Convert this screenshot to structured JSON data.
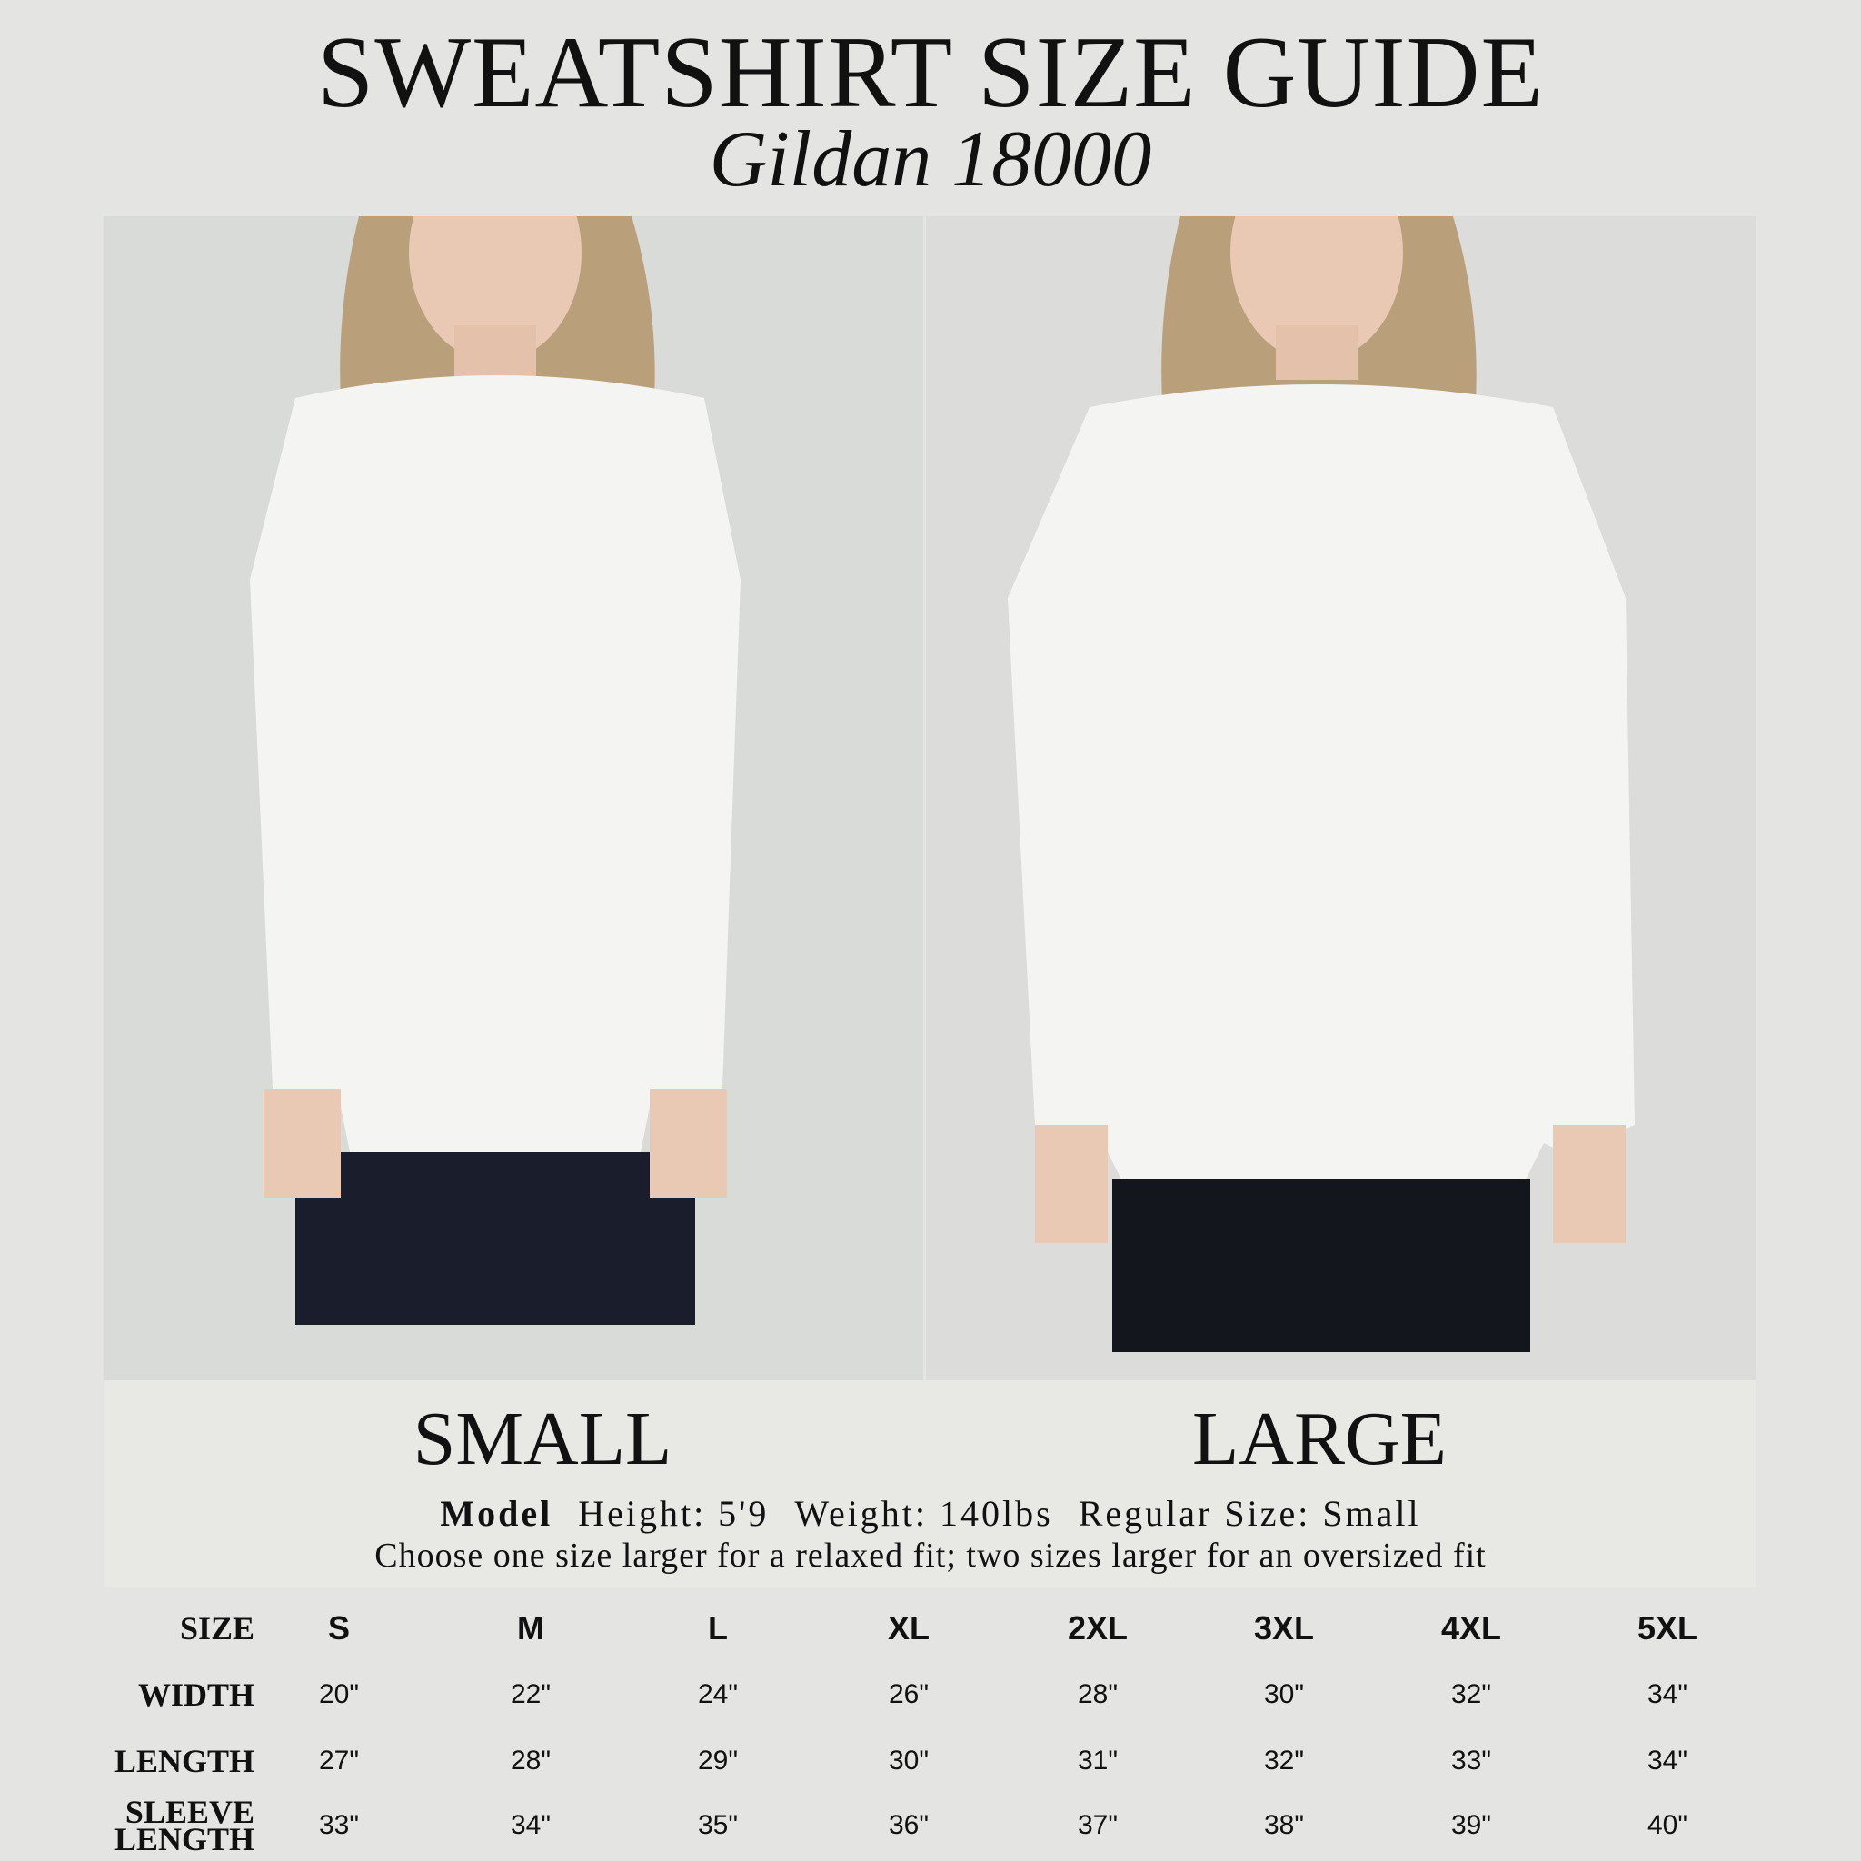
{
  "header": {
    "title": "SWEATSHIRT SIZE GUIDE",
    "subtitle": "Gildan 18000"
  },
  "photos": [
    {
      "label": "SMALL"
    },
    {
      "label": "LARGE"
    }
  ],
  "model": {
    "label": "Model",
    "height": "Height: 5'9",
    "weight": "Weight: 140lbs",
    "regular_size": "Regular Size: Small"
  },
  "note": "Choose one size larger for a relaxed fit; two sizes larger for an oversized fit",
  "table": {
    "header": [
      "SIZE",
      "S",
      "M",
      "L",
      "XL",
      "2XL",
      "3XL",
      "4XL",
      "5XL"
    ],
    "rows": [
      [
        "WIDTH",
        "20\"",
        "22\"",
        "24\"",
        "26\"",
        "28\"",
        "30\"",
        "32\"",
        "34\""
      ],
      [
        "LENGTH",
        "27\"",
        "28\"",
        "29\"",
        "30\"",
        "31\"",
        "32\"",
        "33\"",
        "34\""
      ],
      [
        "SLEEVE LENGTH",
        "33\"",
        "34\"",
        "35\"",
        "36\"",
        "37\"",
        "38\"",
        "39\"",
        "40\""
      ]
    ]
  }
}
